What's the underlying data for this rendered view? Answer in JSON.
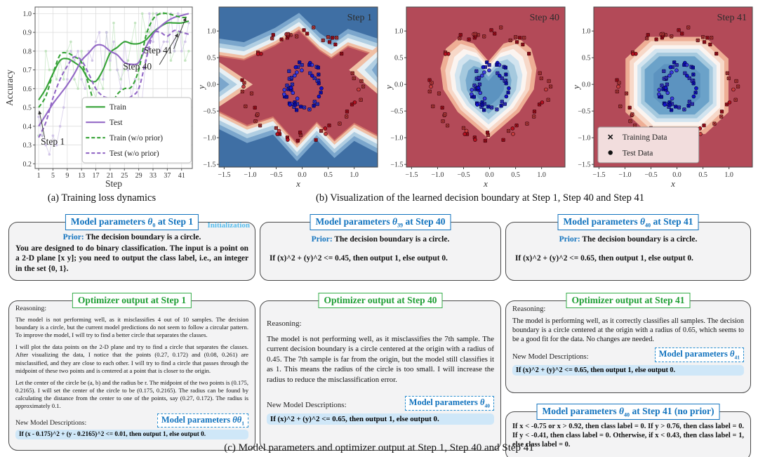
{
  "figure": {
    "caption_a": "(a) Training loss dynamics",
    "caption_b": "(b) Visualization of the learned decision boundary at Step 1, Step 40 and Step 41",
    "caption_c": "(c) Model parameters and optimizer output at Step 1, Step 40 and Step 41"
  },
  "chart_data": [
    {
      "type": "line",
      "title": "Training loss dynamics",
      "xlabel": "Step",
      "ylabel": "Accuracy",
      "xlim": [
        0,
        44
      ],
      "ylim": [
        0.2,
        1.0
      ],
      "xticks": [
        1,
        5,
        9,
        13,
        17,
        21,
        25,
        29,
        33,
        37,
        41
      ],
      "yticks": [
        0.2,
        0.3,
        0.4,
        0.5,
        0.6,
        0.7,
        0.8,
        0.9,
        1.0
      ],
      "grid": true,
      "legend_position": "lower right",
      "x": [
        1,
        3,
        5,
        7,
        9,
        11,
        13,
        15,
        17,
        19,
        21,
        23,
        25,
        27,
        29,
        31,
        33,
        35,
        37,
        39,
        41,
        43
      ],
      "series": [
        {
          "name": "Train",
          "style": "solid",
          "color": "#35a236",
          "values": [
            0.54,
            0.6,
            0.68,
            0.75,
            0.76,
            0.74,
            0.71,
            0.65,
            0.64,
            0.7,
            0.79,
            0.82,
            0.85,
            0.84,
            0.84,
            0.86,
            0.9,
            0.93,
            0.95,
            0.95,
            0.95,
            0.96
          ]
        },
        {
          "name": "Test",
          "style": "solid",
          "color": "#9368c6",
          "values": [
            0.4,
            0.46,
            0.52,
            0.57,
            0.62,
            0.68,
            0.75,
            0.79,
            0.83,
            0.83,
            0.8,
            0.78,
            0.74,
            0.73,
            0.74,
            0.82,
            0.89,
            0.93,
            0.96,
            0.98,
            0.99,
            1.0
          ]
        },
        {
          "name": "Train (w/o prior)",
          "style": "dashed",
          "color": "#35a236",
          "values": [
            0.5,
            0.56,
            0.68,
            0.78,
            0.79,
            0.77,
            0.74,
            0.62,
            0.5,
            0.46,
            0.5,
            0.57,
            0.6,
            0.61,
            0.7,
            0.88,
            0.97,
            1.0,
            1.0,
            0.99,
            0.98,
            0.98
          ]
        },
        {
          "name": "Test (w/o prior)",
          "style": "dashed",
          "color": "#9368c6",
          "values": [
            0.34,
            0.42,
            0.55,
            0.65,
            0.72,
            0.77,
            0.75,
            0.68,
            0.6,
            0.56,
            0.55,
            0.55,
            0.54,
            0.56,
            0.6,
            0.75,
            0.89,
            0.9,
            0.88,
            0.91,
            0.9,
            0.89
          ]
        }
      ],
      "raw_point_colors": {
        "train": "#b9e0b5",
        "test": "#c9bce3"
      },
      "annotations": [
        {
          "text": "Step 1",
          "tx": 1.6,
          "ty": 0.302,
          "lx": 2.7,
          "ly": 0.338,
          "ax": 1.15,
          "ay": 0.482
        },
        {
          "text": "Step 40",
          "tx": 24.6,
          "ty": 0.703,
          "lx": 34.8,
          "ly": 0.728,
          "ax": 40.0,
          "ay": 0.893
        },
        {
          "text": "Step 41",
          "tx": 30.4,
          "ty": 0.788,
          "lx": 38.8,
          "ly": 0.812,
          "ax": 42.2,
          "ay": 0.978
        }
      ]
    },
    {
      "type": "heatmap",
      "variant": "zigzag",
      "title": "Step 1",
      "xlabel": "x",
      "ylabel": "y",
      "xlim": [
        -1.6,
        1.45
      ],
      "ylim": [
        -1.55,
        1.45
      ],
      "xticks": [
        -1.5,
        -1.0,
        -0.5,
        0.0,
        0.5,
        1.0
      ],
      "yticks": [
        -1.5,
        -1.0,
        -0.5,
        0.0,
        0.5,
        1.0
      ],
      "class1_color_region": "red (center band)",
      "class0_color_region": "blue (top/bottom)",
      "band_colors": [
        "#3f6fa4",
        "#7ba6cc",
        "#b0cee2",
        "#e8f0f4",
        "#f0bfa4",
        "#d4766a",
        "#b34a58"
      ]
    },
    {
      "type": "heatmap",
      "variant": "heart",
      "title": "Step 40",
      "xlabel": "x",
      "ylabel": "y",
      "xlim": [
        -1.6,
        1.45
      ],
      "ylim": [
        -1.55,
        1.45
      ],
      "xticks": [
        -1.5,
        -1.0,
        -0.5,
        0.0,
        0.5,
        1.0
      ],
      "yticks": [
        -1.5,
        -1.0,
        -0.5,
        0.0,
        0.5,
        1.0
      ],
      "decision_rule": "If (x)^2 + (y)^2 <= 0.45, then output 1, else output 0",
      "band_colors": [
        "#b34a58",
        "#eeae95",
        "#f7d8c8",
        "#fbf4f0",
        "#d2e4ef",
        "#a5c9de",
        "#74a7cc",
        "#5c93c0"
      ]
    },
    {
      "type": "heatmap",
      "variant": "octagon",
      "title": "Step 41",
      "xlabel": "x",
      "ylabel": "y",
      "xlim": [
        -1.6,
        1.45
      ],
      "ylim": [
        -1.55,
        1.45
      ],
      "xticks": [
        -1.5,
        -1.0,
        -0.5,
        0.0,
        0.5,
        1.0
      ],
      "yticks": [
        -1.5,
        -1.0,
        -0.5,
        0.0,
        0.5,
        1.0
      ],
      "decision_rule": "If (x)^2 + (y)^2 <= 0.65, then output 1, else output 0",
      "band_colors": [
        "#b34a58",
        "#eeae95",
        "#f7d8c8",
        "#fbf4f0",
        "#d2e4ef",
        "#a5c9de",
        "#6ba2c9",
        "#5c93c0"
      ],
      "legend": {
        "entries": [
          {
            "marker": "x",
            "label": "Training Data"
          },
          {
            "marker": "circle",
            "label": "Test Data"
          }
        ]
      }
    }
  ],
  "scatter_spec": {
    "outer_ring": {
      "class": "0",
      "color": "#b5101f",
      "center": [
        0,
        0
      ],
      "radius": 1.0,
      "count": 58
    },
    "inner_ring": {
      "class": "1",
      "color": "#1111cc",
      "center": [
        0.04,
        -0.04
      ],
      "radius": 0.33,
      "count": 52
    }
  },
  "c": {
    "col1": {
      "params_box": {
        "title": {
          "pre": "Model parameters ",
          "theta": "θ",
          "sub": "0",
          "post": " at Step 1"
        },
        "tag": "Initialization",
        "prior_label": "Prior:",
        "prior_text": "The decision boundary is a circle.",
        "body": "You are designed to do binary classification. The input is a point on a 2-D plane [x y]; you need to output the class label, i.e., an integer in the set {0, 1}."
      },
      "optimizer_box": {
        "title": "Optimizer output at Step 1",
        "reasoning_label": "Reasoning:",
        "paragraphs": [
          "The model is not performing well, as it misclassifies 4 out of 10 samples. The decision boundary is a circle, but the current model predictions do not seem to follow a circular pattern. To improve the model, I will try to find a better circle that separates the classes.",
          "I will plot the data points on the 2-D plane and try to find a circle that separates the classes. After visualizing the data, I notice that the points (0.27, 0.172) and (0.08, 0.261) are misclassified, and they are close to each other. I will try to find a circle that passes through the midpoint of these two points and is centered at a point that is closer to the origin.",
          "Let the center of the circle be (a, b) and the radius be r. The midpoint of the two points is (0.175, 0.2165). I will set the center of the circle to be (0.175, 0.2165). The radius can be found by calculating the distance from the center to one of the points, say (0.27, 0.172). The radius is approximately 0.1."
        ],
        "new_label": "New Model Descriptions:",
        "param_tag": {
          "pre": "Model parameters ",
          "theta": "θ",
          "sub": "1"
        },
        "highlight": "If (x - 0.175)^2 + (y - 0.2165)^2 <= 0.01, then output 1, else output 0."
      }
    },
    "col2": {
      "params_box": {
        "title": {
          "pre": "Model parameters ",
          "theta": "θ",
          "sub": "39",
          "post": " at Step 40"
        },
        "prior_label": "Prior:",
        "prior_text": "The decision boundary is a circle.",
        "body": "If (x)^2 + (y)^2 <= 0.45, then output 1, else output 0."
      },
      "optimizer_box": {
        "title": "Optimizer output at Step 40",
        "reasoning_label": "Reasoning:",
        "paragraphs": [
          "The model is not performing well, as it misclassifies the 7th sample. The current decision boundary is a circle centered at the origin with a radius of 0.45. The 7th sample is far from the origin, but the model still classifies it as 1. This means the radius of the circle is too small. I will increase the radius to reduce the misclassification error."
        ],
        "new_label": "New Model Descriptions:",
        "param_tag": {
          "pre": "Model parameters ",
          "theta": "θ",
          "sub": "40"
        },
        "highlight": "If (x)^2 + (y)^2 <= 0.65, then output 1, else output 0."
      }
    },
    "col3": {
      "params_box": {
        "title": {
          "pre": "Model parameters ",
          "theta": "θ",
          "sub": "40",
          "post": " at Step 41"
        },
        "prior_label": "Prior:",
        "prior_text": "The decision boundary is a circle.",
        "body": "If (x)^2 + (y)^2 <= 0.65, then output 1, else output 0."
      },
      "optimizer_box": {
        "title": "Optimizer output at Step 41",
        "reasoning_label": "Reasoning:",
        "paragraphs": [
          "The model is performing well, as it correctly classifies all samples. The decision boundary is a circle centered at the origin with a radius of 0.65, which seems to be a good fit for the data. No changes are needed."
        ],
        "new_label": "New Model Descriptions:",
        "param_tag": {
          "pre": "Model parameters ",
          "theta": "θ",
          "sub": "41"
        },
        "highlight": "If (x)^2 + (y)^2 <= 0.65, then output 1, else output 0."
      },
      "noprior_box": {
        "title": {
          "pre": "Model parameters ",
          "theta": "θ",
          "sub": "40",
          "post": " at Step 41 (no prior)"
        },
        "body": "If x < -0.75 or x > 0.92, then class label = 0. If y > 0.76, then class label = 0. If y < -0.41, then class label = 0. Otherwise, if x < 0.43, then class label = 1, else class label = 0."
      }
    }
  }
}
